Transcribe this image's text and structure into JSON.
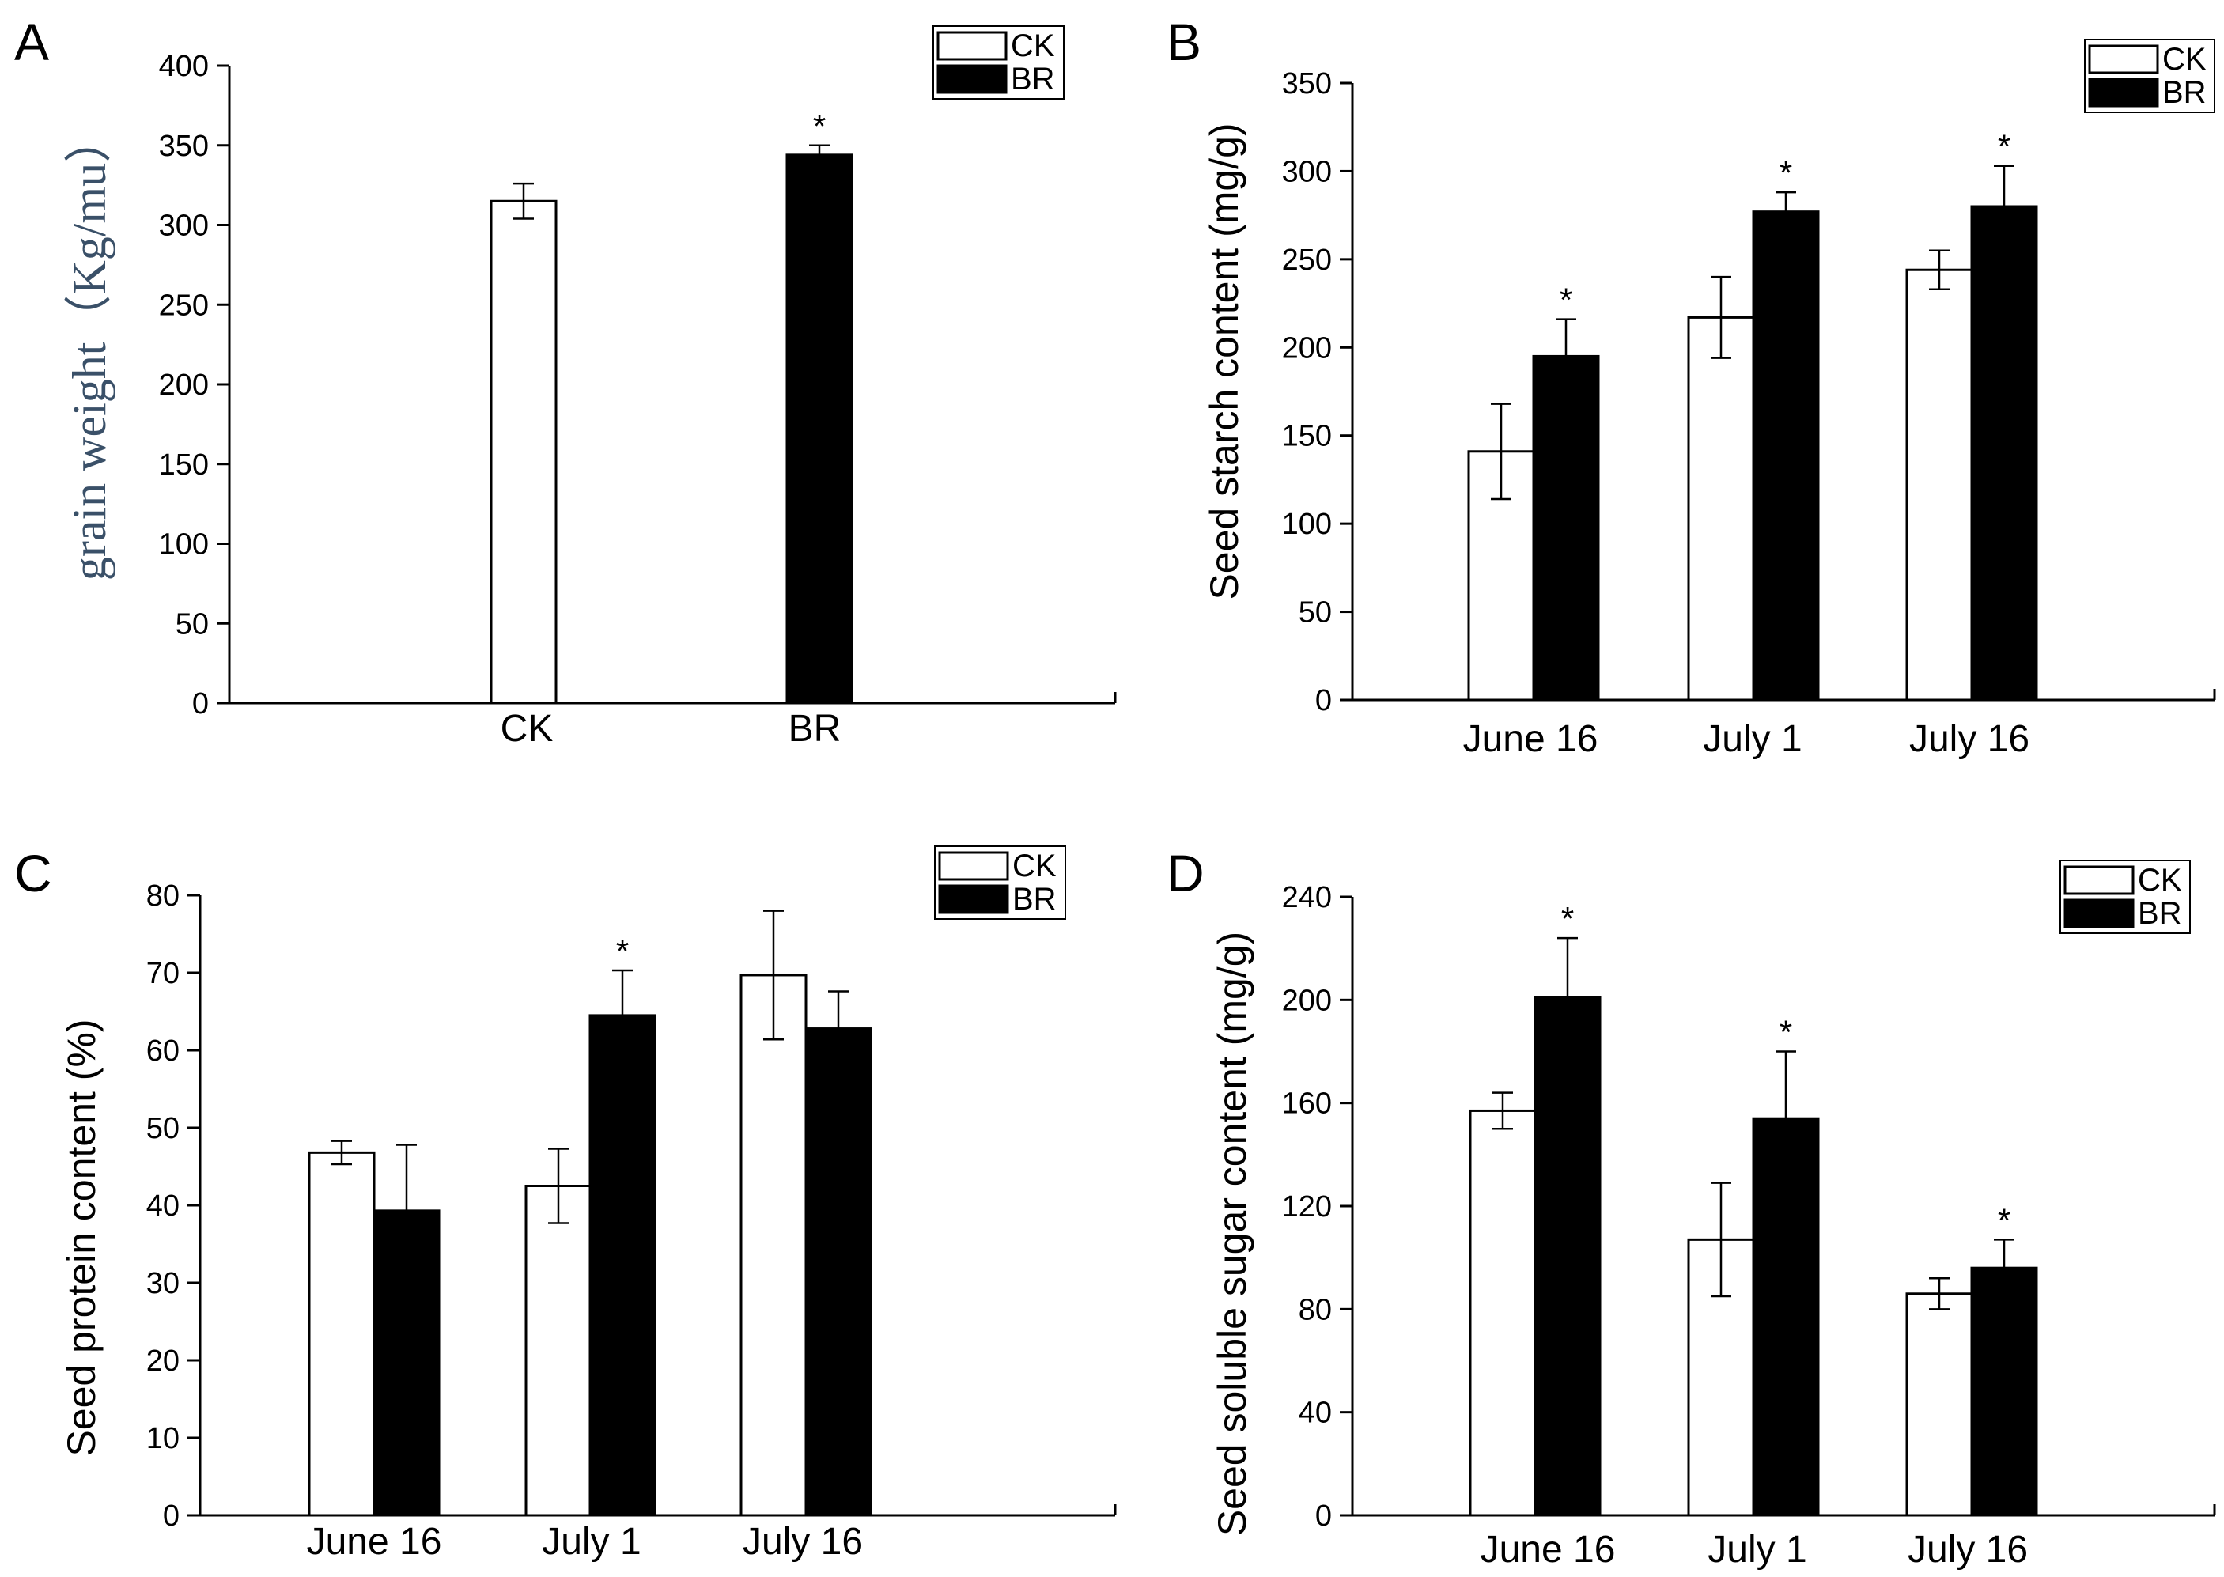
{
  "legend": {
    "ck_label": "CK",
    "br_label": "BR"
  },
  "chart_data": [
    {
      "id": "A",
      "type": "bar",
      "panel_label": "A",
      "title": "",
      "ylabel": "grain weight（Kg/mu）",
      "xlabel": "",
      "ylim": [
        0,
        400
      ],
      "yticks": [
        0,
        50,
        100,
        150,
        200,
        250,
        300,
        350,
        400
      ],
      "categories": [
        "CK",
        "BR"
      ],
      "series": [
        {
          "name": "CK",
          "values": [
            315,
            null
          ],
          "errors": [
            11,
            null
          ],
          "significant": [
            false,
            false
          ]
        },
        {
          "name": "BR",
          "values": [
            null,
            344
          ],
          "errors": [
            null,
            6
          ],
          "significant": [
            false,
            true
          ]
        }
      ],
      "significance_mark": "*"
    },
    {
      "id": "B",
      "type": "bar",
      "panel_label": "B",
      "title": "",
      "ylabel": "Seed starch content (mg/g)",
      "xlabel": "",
      "ylim": [
        0,
        350
      ],
      "yticks": [
        0,
        50,
        100,
        150,
        200,
        250,
        300,
        350
      ],
      "categories": [
        "June 16",
        "July 1",
        "July 16"
      ],
      "series": [
        {
          "name": "CK",
          "values": [
            141,
            217,
            244
          ],
          "errors": [
            27,
            23,
            11
          ],
          "significant": [
            false,
            false,
            false
          ]
        },
        {
          "name": "BR",
          "values": [
            195,
            277,
            280
          ],
          "errors": [
            21,
            11,
            23
          ],
          "significant": [
            true,
            true,
            true
          ]
        }
      ],
      "significance_mark": "*"
    },
    {
      "id": "C",
      "type": "bar",
      "panel_label": "C",
      "title": "",
      "ylabel": "Seed protein content (%)",
      "xlabel": "",
      "ylim": [
        0,
        80
      ],
      "yticks": [
        0,
        10,
        20,
        30,
        40,
        50,
        60,
        70,
        80
      ],
      "categories": [
        "June 16",
        "July 1",
        "July 16"
      ],
      "series": [
        {
          "name": "CK",
          "values": [
            46.8,
            42.5,
            69.7
          ],
          "errors": [
            1.5,
            4.8,
            8.3
          ],
          "significant": [
            false,
            false,
            false
          ]
        },
        {
          "name": "BR",
          "values": [
            39.3,
            64.5,
            62.8
          ],
          "errors": [
            8.5,
            5.8,
            4.8
          ],
          "significant": [
            false,
            true,
            false
          ]
        }
      ],
      "significance_mark": "*"
    },
    {
      "id": "D",
      "type": "bar",
      "panel_label": "D",
      "title": "",
      "ylabel": "Seed soluble sugar content (mg/g)",
      "xlabel": "",
      "ylim": [
        0,
        240
      ],
      "yticks": [
        0,
        40,
        80,
        120,
        160,
        200,
        240
      ],
      "categories": [
        "June 16",
        "July 1",
        "July 16"
      ],
      "series": [
        {
          "name": "CK",
          "values": [
            157,
            107,
            86
          ],
          "errors": [
            7,
            22,
            6
          ],
          "significant": [
            false,
            false,
            false
          ]
        },
        {
          "name": "BR",
          "values": [
            201,
            154,
            96
          ],
          "errors": [
            23,
            26,
            11
          ],
          "significant": [
            true,
            true,
            true
          ]
        }
      ],
      "significance_mark": "*"
    }
  ]
}
